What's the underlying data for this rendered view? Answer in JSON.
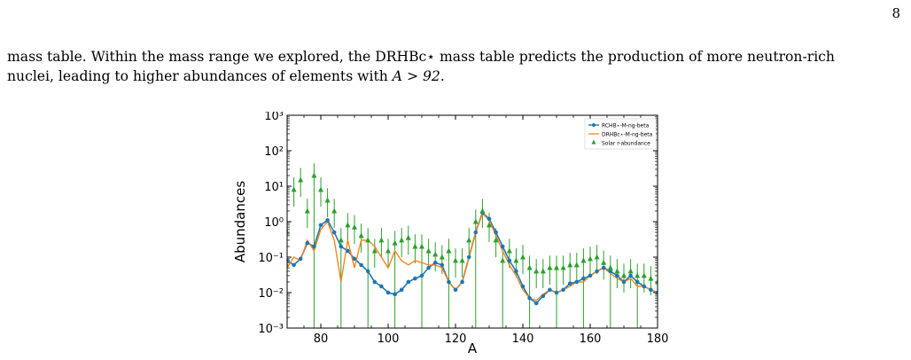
{
  "page": {
    "number": "8"
  },
  "text": {
    "line1": "mass table. Within the mass range we explored, the DRHBc⋆ mass table predicts the production of more neutron-rich",
    "line2_prefix": "nuclei, leading to higher abundances of elements with ",
    "line2_math": "A > 92",
    "line2_suffix": "."
  },
  "chart_data": {
    "type": "line",
    "xlabel": "A",
    "ylabel": "Abundances",
    "xlim": [
      70,
      180
    ],
    "ylim": [
      0.001,
      1000
    ],
    "yscale": "log",
    "x_ticks": [
      80,
      100,
      120,
      140,
      160,
      180
    ],
    "y_tick_labels": [
      "10⁻³",
      "10⁻²",
      "10⁻¹",
      "10⁰",
      "10¹",
      "10²",
      "10³"
    ],
    "grid": false,
    "legend_position": "top-right",
    "series": [
      {
        "name": "RCHB⋆-M-ng-beta",
        "color": "#1f77b4",
        "style": "line-markers",
        "x": [
          70,
          72,
          74,
          76,
          78,
          80,
          82,
          84,
          86,
          88,
          90,
          92,
          94,
          96,
          98,
          100,
          102,
          104,
          106,
          108,
          110,
          112,
          114,
          116,
          118,
          120,
          122,
          124,
          126,
          128,
          130,
          132,
          134,
          136,
          138,
          140,
          142,
          144,
          146,
          148,
          150,
          152,
          154,
          156,
          158,
          160,
          162,
          164,
          166,
          168,
          170,
          172,
          174,
          176,
          178,
          180
        ],
        "values": [
          0.08,
          0.06,
          0.09,
          0.25,
          0.2,
          0.8,
          1.1,
          0.5,
          0.2,
          0.15,
          0.09,
          0.06,
          0.04,
          0.02,
          0.015,
          0.01,
          0.009,
          0.012,
          0.02,
          0.025,
          0.03,
          0.05,
          0.07,
          0.06,
          0.02,
          0.012,
          0.02,
          0.1,
          0.5,
          1.8,
          1.2,
          0.5,
          0.2,
          0.08,
          0.04,
          0.015,
          0.007,
          0.005,
          0.008,
          0.012,
          0.01,
          0.012,
          0.018,
          0.02,
          0.025,
          0.03,
          0.04,
          0.05,
          0.04,
          0.03,
          0.02,
          0.03,
          0.02,
          0.015,
          0.012,
          0.01
        ]
      },
      {
        "name": "DRHBc⋆-M-ng-beta",
        "color": "#ff7f0e",
        "style": "line",
        "x": [
          70,
          72,
          74,
          76,
          78,
          80,
          82,
          84,
          86,
          88,
          90,
          92,
          94,
          96,
          98,
          100,
          102,
          104,
          106,
          108,
          110,
          112,
          114,
          116,
          118,
          120,
          122,
          124,
          126,
          128,
          130,
          132,
          134,
          136,
          138,
          140,
          142,
          144,
          146,
          148,
          150,
          152,
          154,
          156,
          158,
          160,
          162,
          164,
          166,
          168,
          170,
          172,
          174,
          176,
          178,
          180
        ],
        "values": [
          0.05,
          0.1,
          0.08,
          0.3,
          0.15,
          0.6,
          1.0,
          0.3,
          0.02,
          0.3,
          0.05,
          0.3,
          0.3,
          0.2,
          0.1,
          0.05,
          0.15,
          0.08,
          0.06,
          0.08,
          0.07,
          0.06,
          0.06,
          0.05,
          0.02,
          0.012,
          0.02,
          0.1,
          0.5,
          1.7,
          1.1,
          0.4,
          0.15,
          0.06,
          0.03,
          0.012,
          0.007,
          0.006,
          0.009,
          0.012,
          0.01,
          0.012,
          0.015,
          0.02,
          0.02,
          0.03,
          0.04,
          0.05,
          0.035,
          0.025,
          0.02,
          0.025,
          0.015,
          0.015,
          0.012,
          0.01
        ]
      },
      {
        "name": "Solar r-abundance",
        "color": "#2ca02c",
        "style": "triangle-markers-errorbars",
        "x": [
          70,
          72,
          74,
          76,
          78,
          80,
          82,
          84,
          86,
          88,
          90,
          92,
          94,
          96,
          98,
          100,
          102,
          104,
          106,
          108,
          110,
          112,
          114,
          116,
          118,
          120,
          122,
          124,
          126,
          128,
          130,
          132,
          134,
          136,
          138,
          140,
          142,
          144,
          146,
          148,
          150,
          152,
          154,
          156,
          158,
          160,
          162,
          164,
          166,
          168,
          170,
          172,
          174,
          176,
          178,
          180
        ],
        "values": [
          0.5,
          8,
          15,
          2,
          20,
          8,
          4,
          2,
          0.3,
          0.8,
          0.7,
          0.4,
          0.3,
          0.15,
          0.3,
          0.15,
          0.25,
          0.3,
          0.35,
          0.2,
          0.2,
          0.15,
          0.12,
          0.1,
          0.15,
          0.08,
          0.08,
          0.3,
          1.0,
          2.0,
          0.8,
          0.3,
          0.08,
          0.15,
          0.08,
          0.1,
          0.05,
          0.04,
          0.04,
          0.05,
          0.05,
          0.05,
          0.06,
          0.06,
          0.08,
          0.09,
          0.1,
          0.07,
          0.05,
          0.04,
          0.03,
          0.04,
          0.03,
          0.03,
          0.025,
          0.02
        ]
      }
    ]
  }
}
